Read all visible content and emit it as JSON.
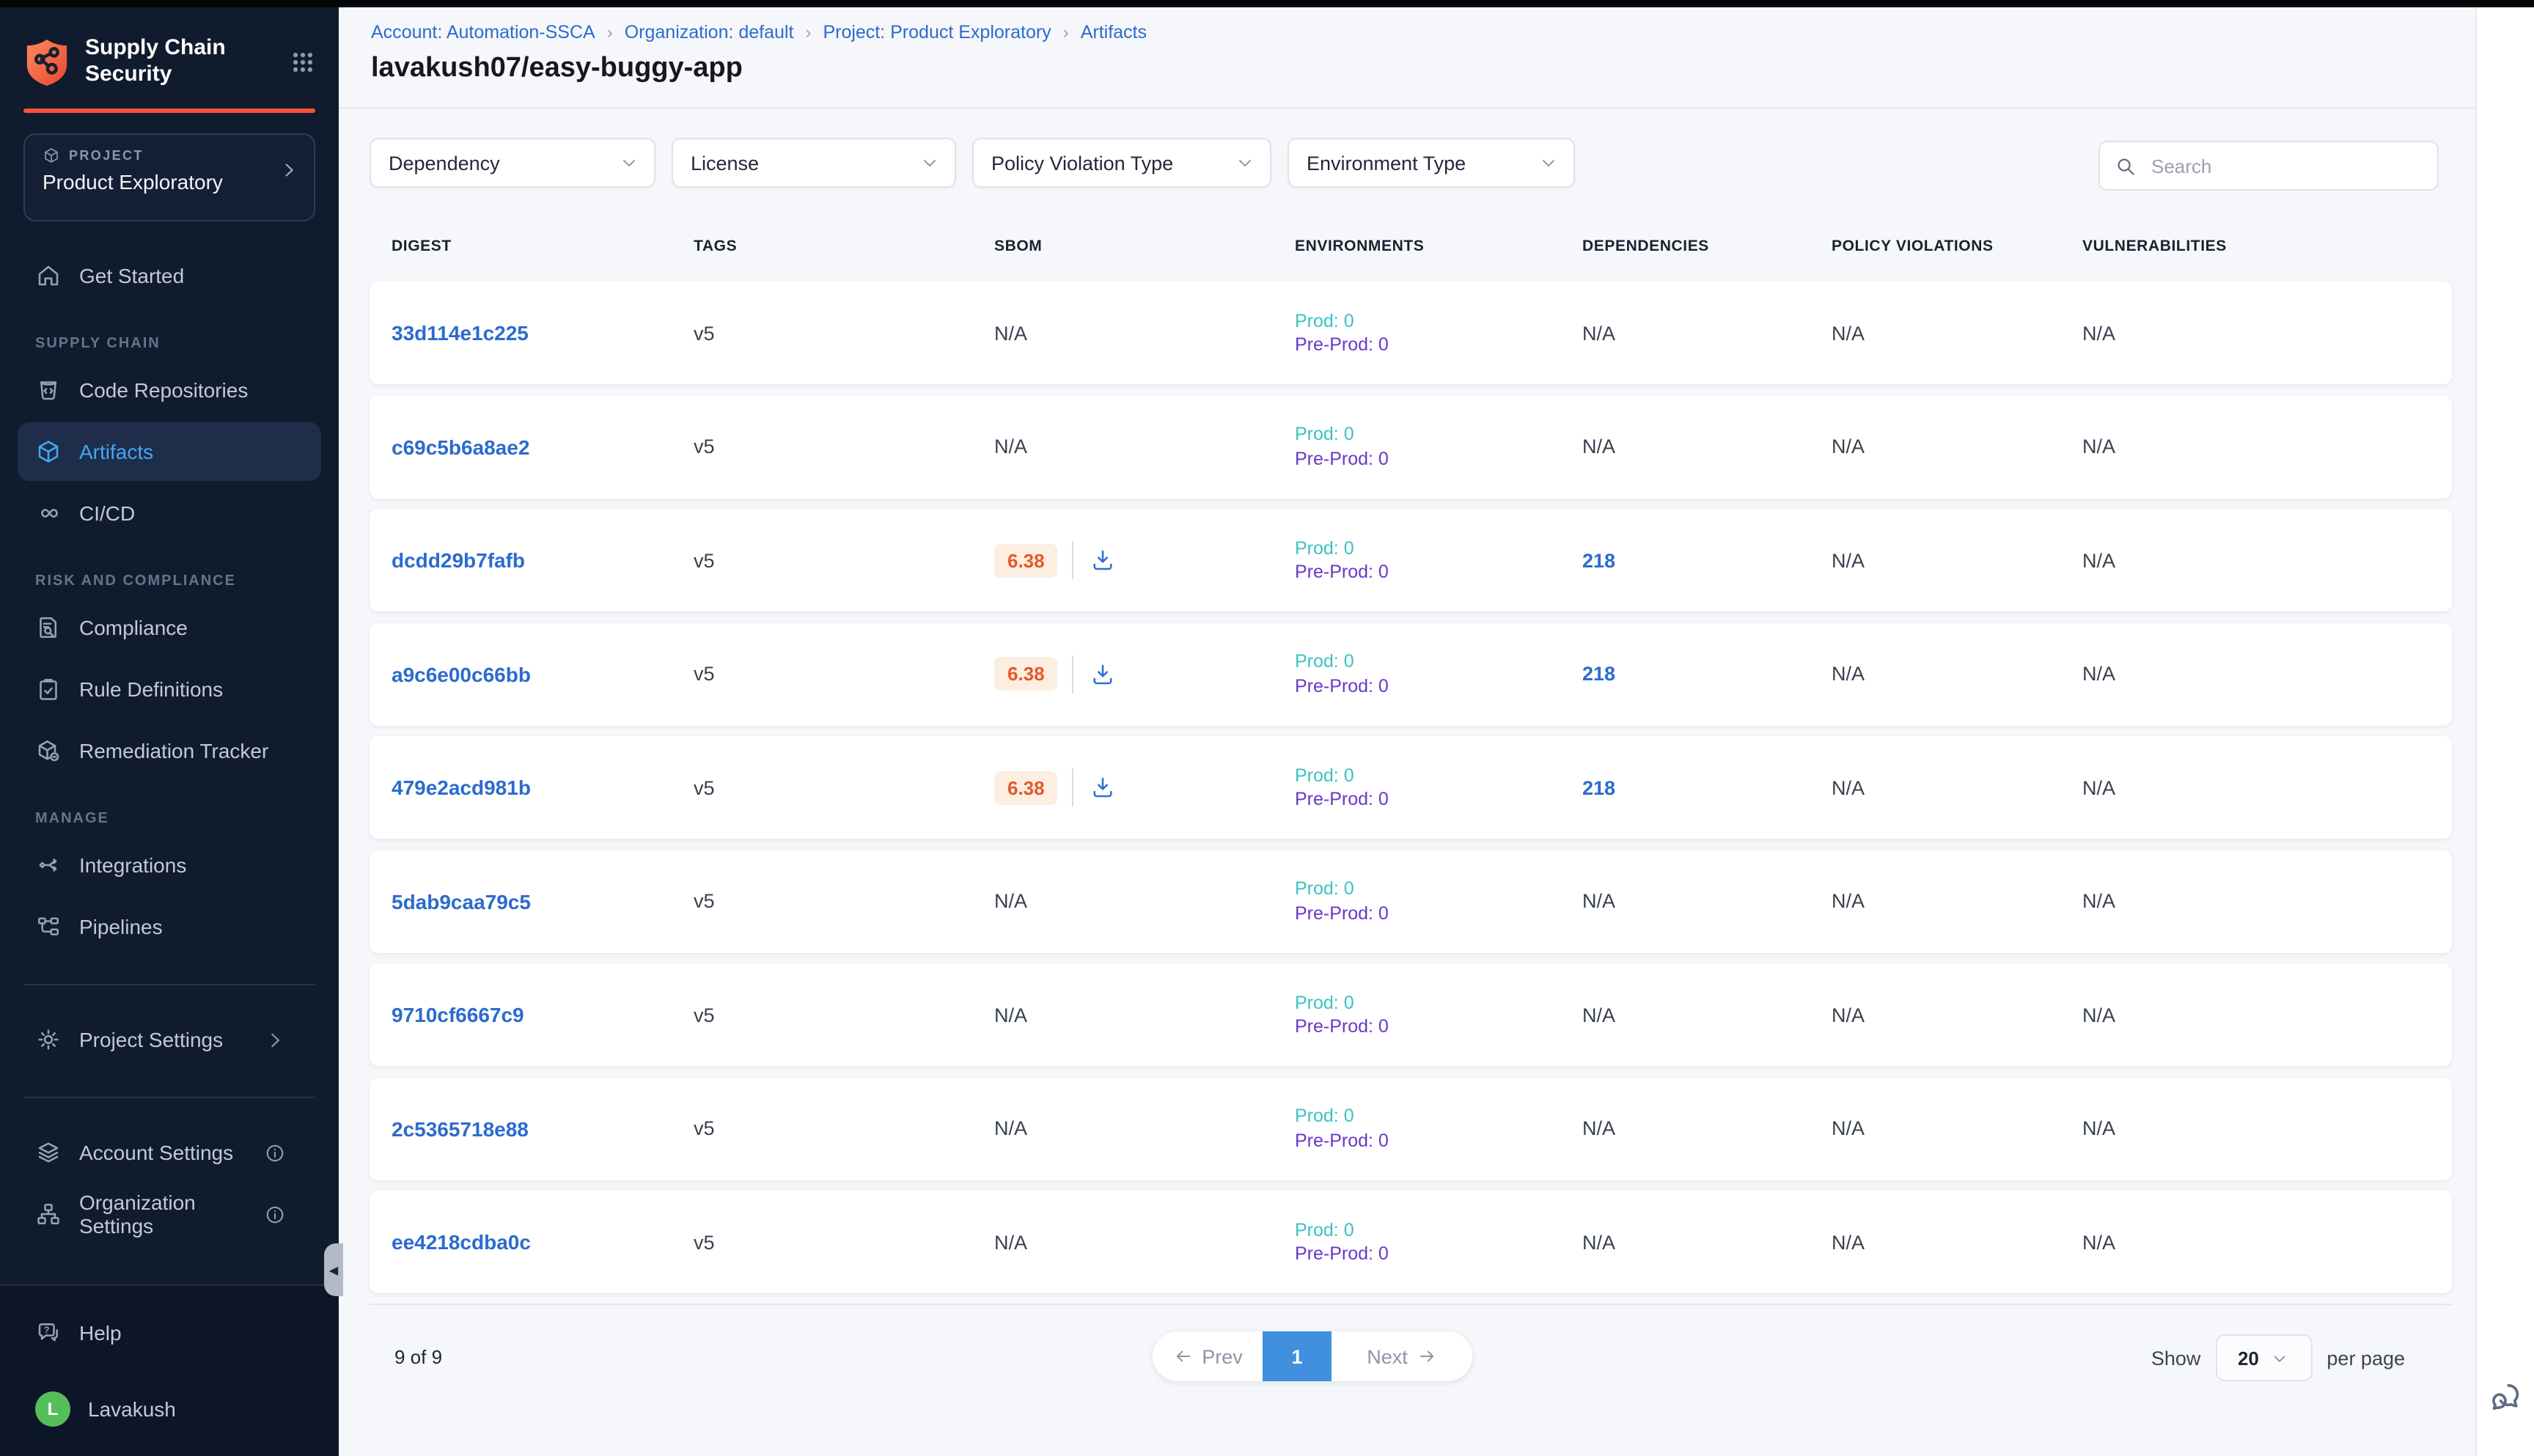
{
  "sidebar": {
    "title_line1": "Supply Chain",
    "title_line2": "Security",
    "project": {
      "label": "PROJECT",
      "name": "Product Exploratory"
    },
    "nav": [
      {
        "type": "item",
        "icon": "home",
        "label": "Get Started"
      },
      {
        "type": "section",
        "label": "SUPPLY CHAIN"
      },
      {
        "type": "item",
        "icon": "repo",
        "label": "Code Repositories"
      },
      {
        "type": "item",
        "icon": "cube",
        "label": "Artifacts",
        "active": true
      },
      {
        "type": "item",
        "icon": "infinity",
        "label": "CI/CD"
      },
      {
        "type": "section",
        "label": "RISK AND COMPLIANCE"
      },
      {
        "type": "item",
        "icon": "doc-search",
        "label": "Compliance"
      },
      {
        "type": "item",
        "icon": "clipboard-check",
        "label": "Rule Definitions"
      },
      {
        "type": "item",
        "icon": "box-wrench",
        "label": "Remediation Tracker"
      },
      {
        "type": "section",
        "label": "MANAGE"
      },
      {
        "type": "item",
        "icon": "integrations",
        "label": "Integrations"
      },
      {
        "type": "item",
        "icon": "pipelines",
        "label": "Pipelines"
      },
      {
        "type": "divider"
      },
      {
        "type": "item",
        "icon": "gear",
        "label": "Project Settings",
        "chevron": true
      },
      {
        "type": "divider"
      },
      {
        "type": "item",
        "icon": "layers",
        "label": "Account Settings",
        "info": true
      },
      {
        "type": "item",
        "icon": "org",
        "label": "Organization Settings",
        "info": true
      }
    ],
    "bottom": {
      "help_label": "Help",
      "user_name": "Lavakush",
      "avatar_initial": "L"
    }
  },
  "header": {
    "breadcrumbs": [
      "Account: Automation-SSCA",
      "Organization: default",
      "Project: Product Exploratory",
      "Artifacts"
    ],
    "title": "lavakush07/easy-buggy-app"
  },
  "filters": {
    "dropdowns": [
      "Dependency",
      "License",
      "Policy Violation Type",
      "Environment Type"
    ],
    "search_placeholder": "Search"
  },
  "table": {
    "columns": [
      "DIGEST",
      "TAGS",
      "SBOM",
      "ENVIRONMENTS",
      "DEPENDENCIES",
      "POLICY VIOLATIONS",
      "VULNERABILITIES"
    ],
    "rows": [
      {
        "digest": "33d114e1c225",
        "tags": "v5",
        "sbom": "N/A",
        "sbom_score": null,
        "prod": "Prod: 0",
        "preprod": "Pre-Prod: 0",
        "dependencies": "N/A",
        "policy_violations": "N/A",
        "vulnerabilities": "N/A"
      },
      {
        "digest": "c69c5b6a8ae2",
        "tags": "v5",
        "sbom": "N/A",
        "sbom_score": null,
        "prod": "Prod: 0",
        "preprod": "Pre-Prod: 0",
        "dependencies": "N/A",
        "policy_violations": "N/A",
        "vulnerabilities": "N/A"
      },
      {
        "digest": "dcdd29b7fafb",
        "tags": "v5",
        "sbom": null,
        "sbom_score": "6.38",
        "prod": "Prod: 0",
        "preprod": "Pre-Prod: 0",
        "dependencies": "218",
        "policy_violations": "N/A",
        "vulnerabilities": "N/A"
      },
      {
        "digest": "a9c6e00c66bb",
        "tags": "v5",
        "sbom": null,
        "sbom_score": "6.38",
        "prod": "Prod: 0",
        "preprod": "Pre-Prod: 0",
        "dependencies": "218",
        "policy_violations": "N/A",
        "vulnerabilities": "N/A"
      },
      {
        "digest": "479e2acd981b",
        "tags": "v5",
        "sbom": null,
        "sbom_score": "6.38",
        "prod": "Prod: 0",
        "preprod": "Pre-Prod: 0",
        "dependencies": "218",
        "policy_violations": "N/A",
        "vulnerabilities": "N/A"
      },
      {
        "digest": "5dab9caa79c5",
        "tags": "v5",
        "sbom": "N/A",
        "sbom_score": null,
        "prod": "Prod: 0",
        "preprod": "Pre-Prod: 0",
        "dependencies": "N/A",
        "policy_violations": "N/A",
        "vulnerabilities": "N/A"
      },
      {
        "digest": "9710cf6667c9",
        "tags": "v5",
        "sbom": "N/A",
        "sbom_score": null,
        "prod": "Prod: 0",
        "preprod": "Pre-Prod: 0",
        "dependencies": "N/A",
        "policy_violations": "N/A",
        "vulnerabilities": "N/A"
      },
      {
        "digest": "2c5365718e88",
        "tags": "v5",
        "sbom": "N/A",
        "sbom_score": null,
        "prod": "Prod: 0",
        "preprod": "Pre-Prod: 0",
        "dependencies": "N/A",
        "policy_violations": "N/A",
        "vulnerabilities": "N/A"
      },
      {
        "digest": "ee4218cdba0c",
        "tags": "v5",
        "sbom": "N/A",
        "sbom_score": null,
        "prod": "Prod: 0",
        "preprod": "Pre-Prod: 0",
        "dependencies": "N/A",
        "policy_violations": "N/A",
        "vulnerabilities": "N/A"
      }
    ]
  },
  "pagination": {
    "summary": "9 of 9",
    "prev_label": "Prev",
    "page": "1",
    "next_label": "Next",
    "show_label": "Show",
    "per_page_value": "20",
    "per_page_suffix": "per page"
  },
  "colors": {
    "accent_orange": "#f9523c",
    "link_blue": "#2c6bce",
    "active_nav_blue": "#41a8f2",
    "prod_teal": "#3cc1c2",
    "preprod_purple": "#6938c9",
    "sbom_score_orange": "#e25a2b",
    "active_page_blue": "#4090dd",
    "sidebar_bg": "#101b2e"
  }
}
